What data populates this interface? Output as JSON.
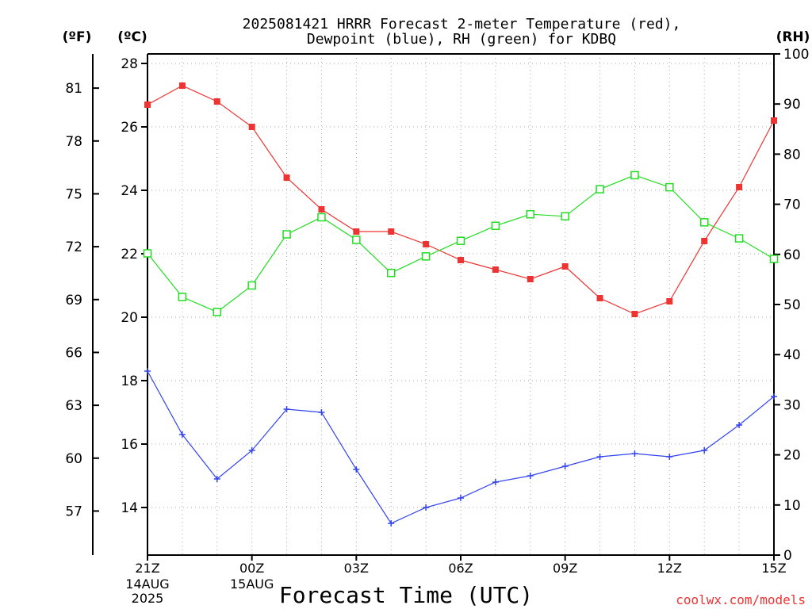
{
  "chart_data": {
    "type": "line",
    "title": "2025081421 HRRR Forecast 2-meter Temperature (red),",
    "subtitle": "Dewpoint (blue), RH (green) for KDBQ",
    "xlabel": "Forecast Time (UTC)",
    "unit_f": "(ºF)",
    "unit_c": "(ºC)",
    "unit_rh": "(RH)",
    "credit": "coolwx.com/models",
    "grid": true,
    "ylim_c": [
      12.5,
      28.3
    ],
    "ylim_rh": [
      0,
      100
    ],
    "x": [
      21,
      22,
      23,
      24,
      25,
      26,
      27,
      28,
      29,
      30,
      31,
      32,
      33,
      34,
      35,
      36,
      37,
      38,
      39
    ],
    "xlim": [
      21,
      39
    ],
    "x_ticks": [
      {
        "x": 21,
        "label": "21Z",
        "sub": [
          "14AUG",
          "2025"
        ]
      },
      {
        "x": 24,
        "label": "00Z",
        "sub": [
          "15AUG"
        ]
      },
      {
        "x": 27,
        "label": "03Z",
        "sub": []
      },
      {
        "x": 30,
        "label": "06Z",
        "sub": []
      },
      {
        "x": 33,
        "label": "09Z",
        "sub": []
      },
      {
        "x": 36,
        "label": "12Z",
        "sub": []
      },
      {
        "x": 39,
        "label": "15Z",
        "sub": []
      }
    ],
    "y_ticks_c": [
      14,
      16,
      18,
      20,
      22,
      24,
      26,
      28
    ],
    "y_ticks_f": [
      57,
      60,
      63,
      66,
      69,
      72,
      75,
      78,
      81
    ],
    "y_ticks_rh": [
      0,
      10,
      20,
      30,
      40,
      50,
      60,
      70,
      80,
      90,
      100
    ],
    "series": [
      {
        "name": "Temperature",
        "axis": "c",
        "color": "#ee3333",
        "marker": "filled-square",
        "values": [
          26.7,
          27.3,
          26.8,
          26.0,
          24.4,
          23.4,
          22.7,
          22.7,
          22.3,
          21.8,
          21.5,
          21.2,
          21.6,
          20.6,
          20.1,
          20.5,
          22.4,
          24.1,
          26.2
        ]
      },
      {
        "name": "Dewpoint",
        "axis": "c",
        "color": "#3344ee",
        "marker": "plus",
        "values": [
          18.3,
          16.3,
          14.9,
          15.8,
          17.1,
          17.0,
          15.2,
          13.5,
          14.0,
          14.3,
          14.8,
          15.0,
          15.3,
          15.6,
          15.7,
          15.6,
          15.8,
          16.6,
          17.5
        ]
      },
      {
        "name": "RH",
        "axis": "rh",
        "color": "#22dd22",
        "marker": "open-square",
        "values": [
          60.2,
          51.5,
          48.5,
          53.8,
          64.0,
          67.4,
          62.9,
          56.3,
          59.6,
          62.7,
          65.7,
          68.0,
          67.6,
          73.0,
          75.8,
          73.4,
          66.4,
          63.2,
          59.1
        ]
      }
    ]
  }
}
